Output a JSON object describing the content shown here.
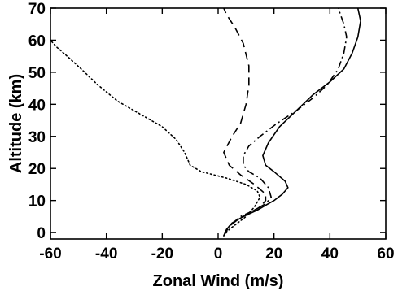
{
  "chart_data": {
    "type": "line",
    "title": "",
    "xlabel": "Zonal Wind (m/s)",
    "ylabel": "Altitude (km)",
    "xlim": [
      -60,
      60
    ],
    "ylim": [
      -2,
      70
    ],
    "xticks": [
      -60,
      -40,
      -20,
      0,
      20,
      40,
      60
    ],
    "yticks": [
      0,
      10,
      20,
      30,
      40,
      50,
      60,
      70
    ],
    "grid": false,
    "legend": "none",
    "series": [
      {
        "style": "solid",
        "points": [
          [
            2,
            -1
          ],
          [
            3,
            1
          ],
          [
            5,
            3
          ],
          [
            9,
            5
          ],
          [
            14,
            7
          ],
          [
            18,
            9
          ],
          [
            20,
            10
          ],
          [
            23,
            12
          ],
          [
            25,
            14
          ],
          [
            24,
            16
          ],
          [
            20,
            19
          ],
          [
            17,
            21
          ],
          [
            16,
            24
          ],
          [
            18,
            28
          ],
          [
            22,
            33
          ],
          [
            28,
            38
          ],
          [
            34,
            43
          ],
          [
            40,
            47
          ],
          [
            45,
            51
          ],
          [
            48,
            56
          ],
          [
            50,
            61
          ],
          [
            51,
            66
          ],
          [
            50,
            70
          ]
        ]
      },
      {
        "style": "dash-dot",
        "points": [
          [
            2,
            -1
          ],
          [
            4,
            2
          ],
          [
            8,
            5
          ],
          [
            13,
            7
          ],
          [
            17,
            9
          ],
          [
            19,
            11
          ],
          [
            18,
            14
          ],
          [
            15,
            17
          ],
          [
            11,
            19
          ],
          [
            9,
            21
          ],
          [
            9,
            24
          ],
          [
            11,
            27
          ],
          [
            15,
            30
          ],
          [
            21,
            34
          ],
          [
            28,
            38
          ],
          [
            34,
            42
          ],
          [
            39,
            46
          ],
          [
            43,
            51
          ],
          [
            45,
            56
          ],
          [
            46,
            61
          ],
          [
            45,
            65
          ],
          [
            43,
            70
          ]
        ]
      },
      {
        "style": "dashed",
        "points": [
          [
            2,
            -1
          ],
          [
            4,
            2
          ],
          [
            7,
            4
          ],
          [
            11,
            6
          ],
          [
            15,
            8
          ],
          [
            17,
            10
          ],
          [
            17,
            12
          ],
          [
            13,
            15
          ],
          [
            8,
            18
          ],
          [
            4,
            21
          ],
          [
            2,
            25
          ],
          [
            5,
            30
          ],
          [
            8,
            34
          ],
          [
            10,
            40
          ],
          [
            11,
            46
          ],
          [
            11,
            52
          ],
          [
            9,
            59
          ],
          [
            6,
            64
          ],
          [
            3,
            68
          ],
          [
            2,
            70
          ]
        ]
      },
      {
        "style": "dotted",
        "points": [
          [
            2,
            -1
          ],
          [
            4,
            1
          ],
          [
            7,
            3
          ],
          [
            10,
            5
          ],
          [
            13,
            8
          ],
          [
            15,
            11
          ],
          [
            14,
            13
          ],
          [
            10,
            15
          ],
          [
            3,
            17
          ],
          [
            -6,
            19
          ],
          [
            -10,
            21
          ],
          [
            -12,
            25
          ],
          [
            -15,
            29
          ],
          [
            -20,
            33
          ],
          [
            -28,
            37
          ],
          [
            -36,
            41
          ],
          [
            -43,
            46
          ],
          [
            -49,
            51
          ],
          [
            -54,
            55
          ],
          [
            -58,
            58
          ],
          [
            -61,
            61
          ]
        ]
      }
    ]
  }
}
